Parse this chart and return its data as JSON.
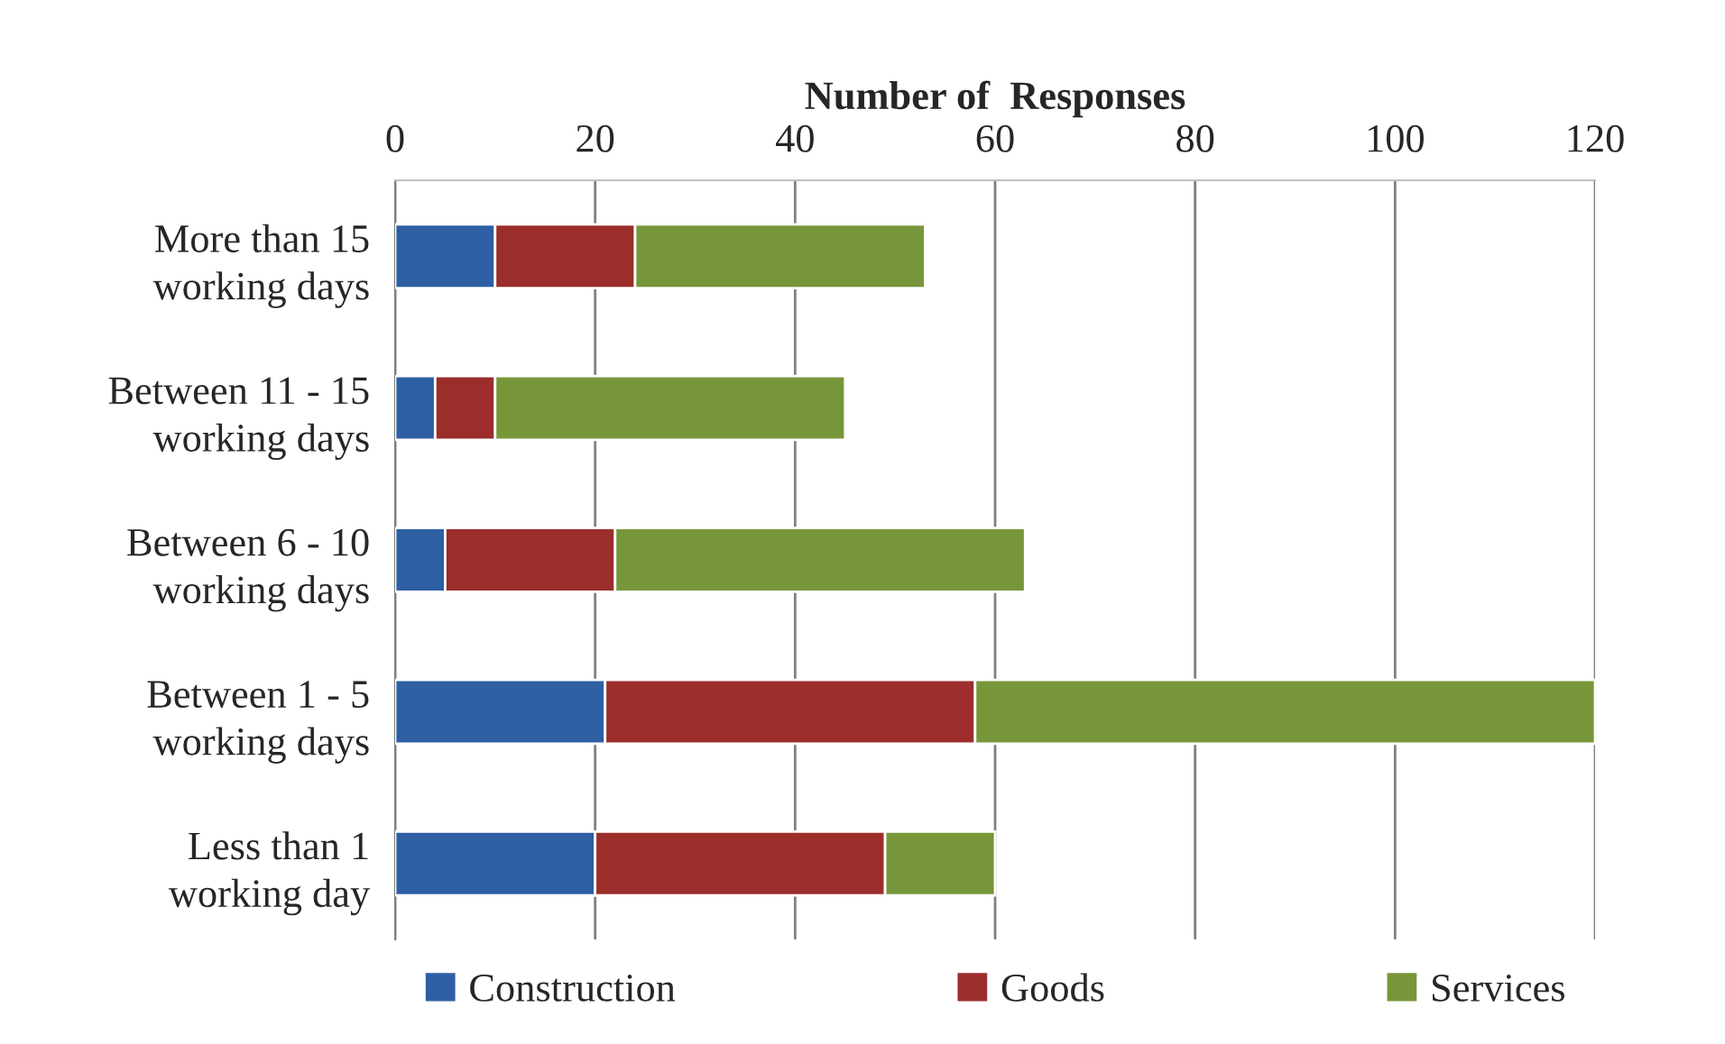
{
  "chart_data": {
    "type": "bar",
    "orientation": "horizontal",
    "stacked": true,
    "xlabel": "Number of  Responses",
    "categories": [
      "More than 15\nworking days",
      "Between 11 - 15\nworking days",
      "Between 6 - 10\nworking days",
      "Between 1 - 5\nworking days",
      "Less than 1\nworking day"
    ],
    "series": [
      {
        "name": "Construction",
        "color": "#2e5fa3",
        "values": [
          10,
          4,
          5,
          21,
          20
        ]
      },
      {
        "name": "Goods",
        "color": "#9b2d2a",
        "values": [
          14,
          6,
          17,
          37,
          29
        ]
      },
      {
        "name": "Services",
        "color": "#77963a",
        "values": [
          29,
          35,
          41,
          62,
          11
        ]
      }
    ],
    "xlim": [
      0,
      120
    ],
    "xticks": [
      0,
      20,
      40,
      60,
      80,
      100,
      120
    ],
    "grid": "x",
    "legend": "bottom"
  }
}
